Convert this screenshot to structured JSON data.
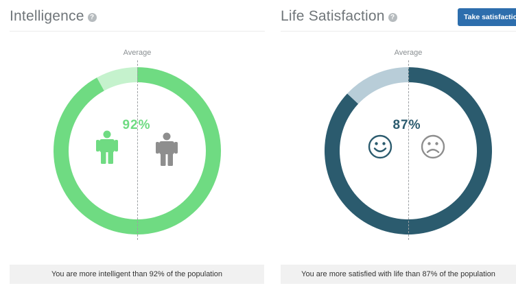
{
  "intelligence": {
    "title": "Intelligence",
    "help_icon": "?",
    "average_label": "Average",
    "percent": 92,
    "percent_text": "92%",
    "icons": [
      "person-green-icon",
      "person-gray-icon"
    ],
    "footer": "You are more intelligent than 92% of the population",
    "colors": {
      "filled": "#6fdb82",
      "remaining": "#c5f2cd",
      "text": "#6fdb82",
      "person_you": "#6fdb82",
      "person_other": "#8e8e8e"
    }
  },
  "life_satisfaction": {
    "title": "Life Satisfaction",
    "help_icon": "?",
    "button_label": "Take satisfaction",
    "average_label": "Average",
    "percent": 87,
    "percent_text": "87%",
    "icons": [
      "smiley-face-icon",
      "sad-face-icon"
    ],
    "footer": "You are more satisfied with life than 87% of the population",
    "colors": {
      "filled": "#2b5b6e",
      "remaining": "#b8cdd8",
      "text": "#2b5b6e",
      "button": "#2d6ead"
    }
  }
}
